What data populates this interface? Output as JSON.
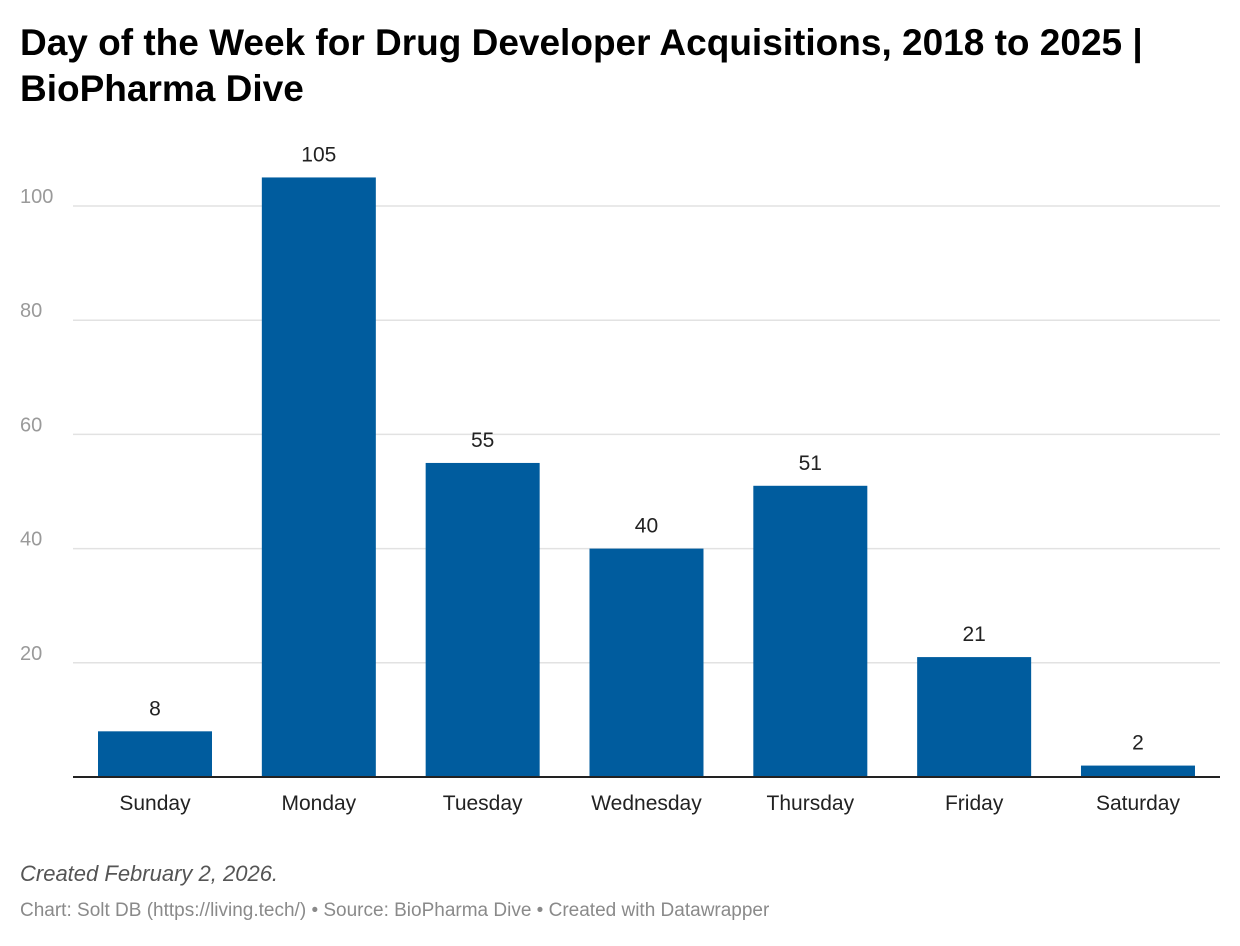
{
  "chart_data": {
    "type": "bar",
    "title": "Day of the Week for Drug Developer Acquisitions, 2018 to 2025 | BioPharma Dive",
    "categories": [
      "Sunday",
      "Monday",
      "Tuesday",
      "Wednesday",
      "Thursday",
      "Friday",
      "Saturday"
    ],
    "values": [
      8,
      105,
      55,
      40,
      51,
      21,
      2
    ],
    "value_labels": [
      "8",
      "105",
      "55",
      "40",
      "51",
      "21",
      "2"
    ],
    "yticks": [
      20,
      40,
      60,
      80,
      100
    ],
    "ylim": [
      0,
      110
    ],
    "grid": true,
    "xlabel": "",
    "ylabel": "",
    "bar_color": "#005c9e"
  },
  "notes": {
    "created": "Created February 2, 2026.",
    "credit": "Chart: Solt DB (https://living.tech/) • Source: BioPharma Dive • Created with Datawrapper"
  }
}
